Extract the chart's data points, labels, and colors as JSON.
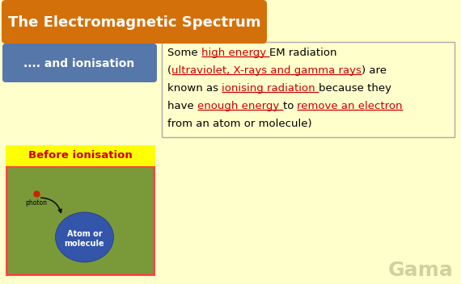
{
  "bg_color": "#FFFFCC",
  "title_text": "The Electromagnetic Spectrum",
  "title_bg": "#D4700A",
  "title_fg": "#FFFFFF",
  "left_box_text": ".... and ionisation",
  "left_box_bg": "#5577AA",
  "left_box_fg": "#FFFFFF",
  "right_box_border": "#AAAAAA",
  "right_box_bg": "#FFFFCC",
  "before_box_title": "Before ionisation",
  "before_box_title_fg": "#CC0000",
  "before_box_title_bg": "#FFFF00",
  "before_box_bg": "#7A9A3A",
  "before_box_border": "#FF4444",
  "atom_color": "#3355AA",
  "atom_text": "Atom or\nmolecule",
  "atom_text_fg": "#FFFFFF",
  "photon_label": "photon",
  "photon_dot_color": "#CC2200",
  "watermark": "Gama",
  "watermark_color": "#CCCC99"
}
